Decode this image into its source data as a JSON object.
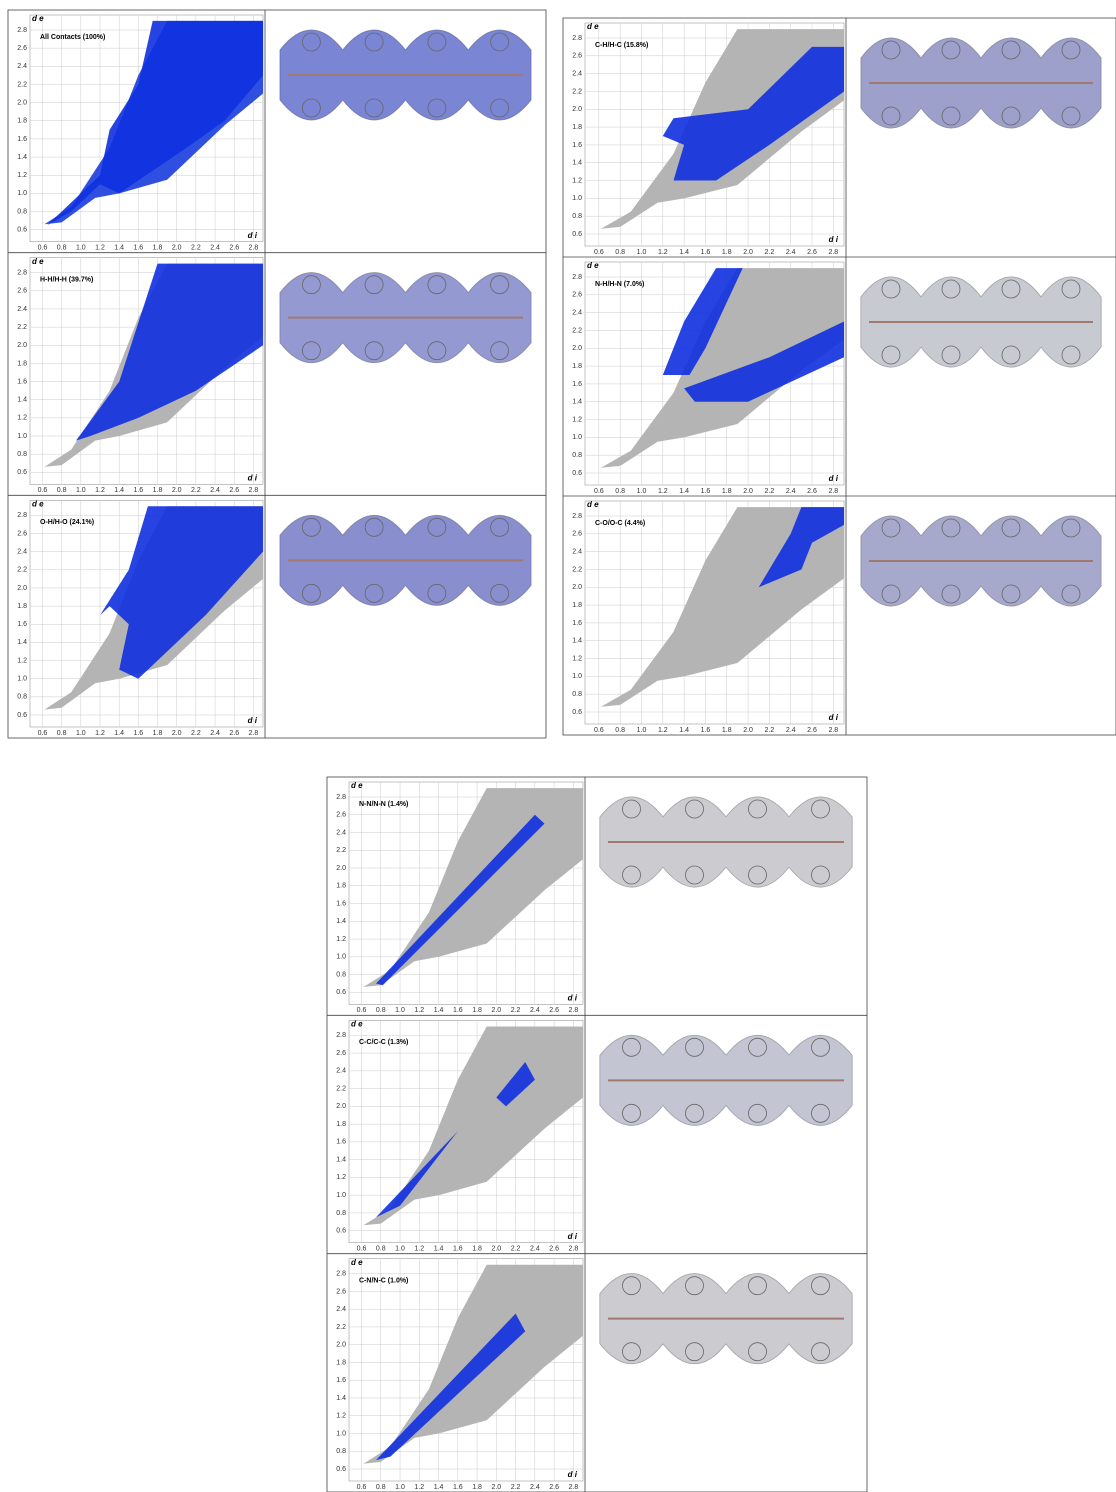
{
  "axis": {
    "y_label": "d e",
    "x_label": "d i",
    "ticks": [
      {
        "value": 0.6,
        "label": "0.6"
      },
      {
        "value": 0.8,
        "label": "0.8"
      },
      {
        "value": 1,
        "label": "1.0"
      },
      {
        "value": 1.2,
        "label": "1.2"
      },
      {
        "value": 1.4,
        "label": "1.4"
      },
      {
        "value": 1.6,
        "label": "1.6"
      },
      {
        "value": 1.8,
        "label": "1.8"
      },
      {
        "value": 2,
        "label": "2.0"
      },
      {
        "value": 2.2,
        "label": "2.2"
      },
      {
        "value": 2.4,
        "label": "2.4"
      },
      {
        "value": 2.6,
        "label": "2.6"
      },
      {
        "value": 2.8,
        "label": "2.8"
      }
    ]
  },
  "groups": [
    {
      "panels": [
        {
          "label": "All Contacts (100%)"
        },
        {
          "label": "H-H/H-H (39.7%)"
        },
        {
          "label": "O-H/H-O (24.1%)"
        }
      ]
    },
    {
      "panels": [
        {
          "label": "C-H/H-C (15.8%)"
        },
        {
          "label": "N-H/H-N (7.0%)"
        },
        {
          "label": "C-O/O-C (4.4%)"
        }
      ]
    },
    {
      "panels": [
        {
          "label": "N-N/N-N (1.4%)"
        },
        {
          "label": "C-C/C-C (1.3%)"
        },
        {
          "label": "C-N/N-C (1.0%)"
        }
      ]
    }
  ]
}
